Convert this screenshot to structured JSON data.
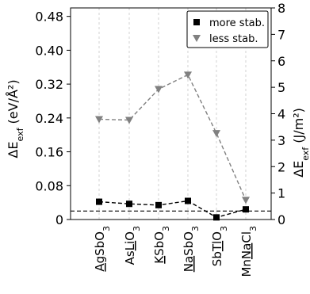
{
  "chart_data": {
    "type": "line",
    "categories": [
      {
        "label": "AgSbO3",
        "segments": [
          {
            "t": "Ag",
            "u": true
          },
          {
            "t": "SbO"
          },
          {
            "t": "3",
            "sub": true
          }
        ]
      },
      {
        "label": "AsLiO3",
        "segments": [
          {
            "t": "As"
          },
          {
            "t": "Li",
            "u": true
          },
          {
            "t": "O"
          },
          {
            "t": "3",
            "sub": true
          }
        ]
      },
      {
        "label": "KSbO3",
        "segments": [
          {
            "t": "K",
            "u": true
          },
          {
            "t": "SbO"
          },
          {
            "t": "3",
            "sub": true
          }
        ]
      },
      {
        "label": "NaSbO3",
        "segments": [
          {
            "t": "Na",
            "u": true
          },
          {
            "t": "SbO"
          },
          {
            "t": "3",
            "sub": true
          }
        ]
      },
      {
        "label": "SbTlO3",
        "segments": [
          {
            "t": "Sb"
          },
          {
            "t": "Tl",
            "u": true
          },
          {
            "t": "O"
          },
          {
            "t": "3",
            "sub": true
          }
        ]
      },
      {
        "label": "MnNaCl3",
        "segments": [
          {
            "t": "Mn"
          },
          {
            "t": "Na",
            "u": true
          },
          {
            "t": "Cl"
          },
          {
            "t": "3",
            "sub": true
          }
        ]
      }
    ],
    "series": [
      {
        "name": "more stab.",
        "values": [
          0.042,
          0.037,
          0.034,
          0.044,
          0.005,
          0.024
        ],
        "color": "#000000",
        "marker": "square",
        "linestyle": "dashed"
      },
      {
        "name": "less stab.",
        "values": [
          0.237,
          0.235,
          0.308,
          0.342,
          0.204,
          0.046
        ],
        "color": "#808080",
        "marker": "triangle-down",
        "linestyle": "dashed"
      }
    ],
    "reference_line": {
      "y": 0.02,
      "color": "#000000",
      "linestyle": "dashed"
    },
    "ylabel_left": "ΔE_exf (eV/Å²)",
    "ylabel_right": "ΔE_exf (J/m²)",
    "ylim_left": [
      0,
      0.5
    ],
    "yticks_left": [
      "0",
      "0.08",
      "0.16",
      "0.24",
      "0.32",
      "0.40",
      "0.48"
    ],
    "ylim_right": [
      0,
      8.0
    ],
    "yticks_right": [
      "0",
      "1",
      "2",
      "3",
      "4",
      "5",
      "6",
      "7",
      "8"
    ],
    "grid": "vertical-dashed",
    "legend_position": "top-right"
  }
}
